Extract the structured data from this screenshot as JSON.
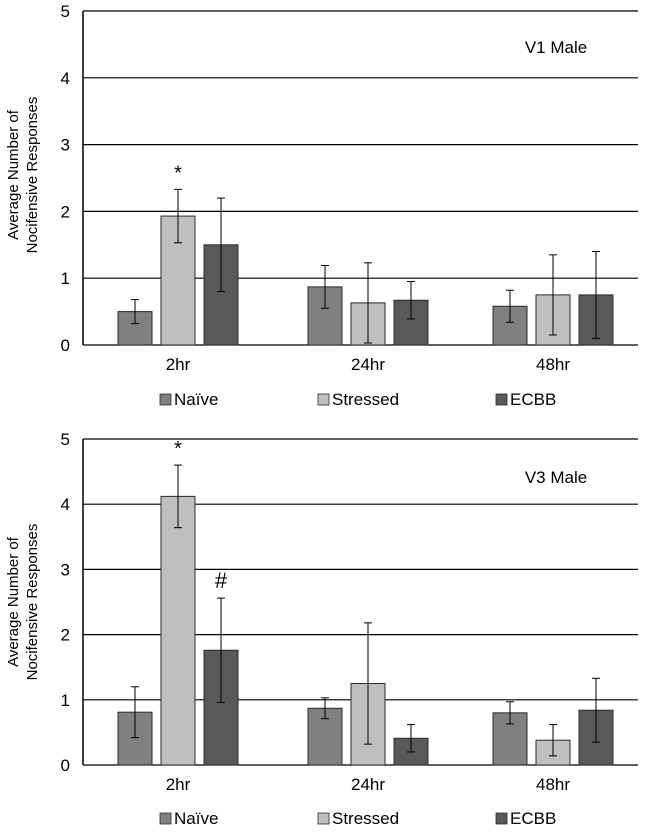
{
  "chart_data": [
    {
      "type": "bar",
      "title": "V1 Male",
      "ylabel_line1": "Average Number of",
      "ylabel_line2": "Nocifensive Responses",
      "xlabel": "",
      "ylim": [
        0,
        5
      ],
      "yticks": [
        "0",
        "1",
        "2",
        "3",
        "4",
        "5"
      ],
      "categories": [
        "2hr",
        "24hr",
        "48hr"
      ],
      "series": [
        {
          "name": "Naïve",
          "color": "#808080",
          "values": [
            0.5,
            0.87,
            0.58
          ],
          "errors": [
            0.18,
            0.32,
            0.24
          ]
        },
        {
          "name": "Stressed",
          "color": "#bfbfbf",
          "values": [
            1.93,
            0.63,
            0.75
          ],
          "errors": [
            0.4,
            0.6,
            0.6
          ]
        },
        {
          "name": "ECBB",
          "color": "#595959",
          "values": [
            1.5,
            0.67,
            0.75
          ],
          "errors": [
            0.7,
            0.28,
            0.65
          ]
        }
      ],
      "annotations": [
        {
          "text": "*",
          "category": 0,
          "series": 1
        }
      ]
    },
    {
      "type": "bar",
      "title": "V3 Male",
      "ylabel_line1": "Average Number of",
      "ylabel_line2": "Nocifensive Responses",
      "xlabel": "",
      "ylim": [
        0,
        5
      ],
      "yticks": [
        "0",
        "1",
        "2",
        "3",
        "4",
        "5"
      ],
      "categories": [
        "2hr",
        "24hr",
        "48hr"
      ],
      "series": [
        {
          "name": "Naïve",
          "color": "#808080",
          "values": [
            0.81,
            0.87,
            0.8
          ],
          "errors": [
            0.39,
            0.16,
            0.17
          ]
        },
        {
          "name": "Stressed",
          "color": "#bfbfbf",
          "values": [
            4.12,
            1.25,
            0.38
          ],
          "errors": [
            0.48,
            0.93,
            0.24
          ]
        },
        {
          "name": "ECBB",
          "color": "#595959",
          "values": [
            1.76,
            0.41,
            0.84
          ],
          "errors": [
            0.8,
            0.21,
            0.49
          ]
        }
      ],
      "annotations": [
        {
          "text": "*",
          "category": 0,
          "series": 1
        },
        {
          "text": "#",
          "category": 0,
          "series": 2
        }
      ]
    }
  ]
}
